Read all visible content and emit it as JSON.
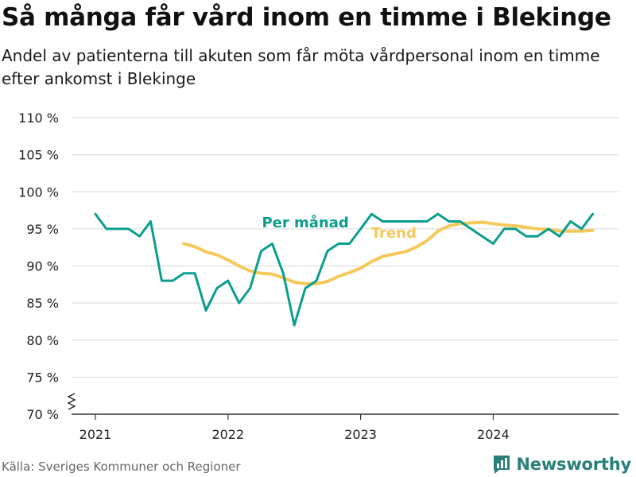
{
  "title": "Så många får vård inom en timme i Blekinge",
  "subtitle": "Andel av patienterna till akuten som får möta vårdpersonal inom en timme efter ankomst i Blekinge",
  "source": "Källa: Sveriges Kommuner och Regioner",
  "brand": "Newsworthy",
  "colors": {
    "per_month": "#0a9e8f",
    "trend": "#f5c85a",
    "grid": "#d9d9d9",
    "axis": "#333333",
    "brand": "#2a7f79"
  },
  "chart_data": {
    "type": "line",
    "y_ticks": [
      70,
      75,
      80,
      85,
      90,
      95,
      100,
      105,
      110
    ],
    "y_tick_labels": [
      "70 %",
      "75 %",
      "80 %",
      "85 %",
      "90 %",
      "95 %",
      "100 %",
      "105 %",
      "110 %"
    ],
    "ylim": [
      70,
      110
    ],
    "y_axis_break": true,
    "x_ticks": [
      "2021-01",
      "2022-01",
      "2023-01",
      "2024-01"
    ],
    "x_tick_labels": [
      "2021",
      "2022",
      "2023",
      "2024"
    ],
    "xlim": [
      "2021-01",
      "2024-12"
    ],
    "grid": true,
    "series": [
      {
        "name": "Per månad",
        "x": [
          "2021-01",
          "2021-02",
          "2021-03",
          "2021-04",
          "2021-05",
          "2021-06",
          "2021-07",
          "2021-08",
          "2021-09",
          "2021-10",
          "2021-11",
          "2021-12",
          "2022-01",
          "2022-02",
          "2022-03",
          "2022-04",
          "2022-05",
          "2022-06",
          "2022-07",
          "2022-08",
          "2022-09",
          "2022-10",
          "2022-11",
          "2022-12",
          "2023-01",
          "2023-02",
          "2023-03",
          "2023-04",
          "2023-05",
          "2023-06",
          "2023-07",
          "2023-08",
          "2023-09",
          "2023-10",
          "2023-11",
          "2023-12",
          "2024-01",
          "2024-02",
          "2024-03",
          "2024-04",
          "2024-05",
          "2024-06",
          "2024-07",
          "2024-08",
          "2024-09",
          "2024-10"
        ],
        "values": [
          97,
          95,
          95,
          95,
          94,
          96,
          88,
          88,
          89,
          89,
          84,
          87,
          88,
          85,
          87,
          92,
          93,
          89,
          82,
          87,
          88,
          92,
          93,
          93,
          95,
          97,
          96,
          96,
          96,
          96,
          96,
          97,
          96,
          96,
          95,
          94,
          93,
          95,
          95,
          94,
          94,
          95,
          94,
          96,
          95,
          97
        ]
      },
      {
        "name": "Trend",
        "x": [
          "2021-09",
          "2021-10",
          "2021-11",
          "2021-12",
          "2022-01",
          "2022-02",
          "2022-03",
          "2022-04",
          "2022-05",
          "2022-06",
          "2022-07",
          "2022-08",
          "2022-09",
          "2022-10",
          "2022-11",
          "2022-12",
          "2023-01",
          "2023-02",
          "2023-03",
          "2023-04",
          "2023-05",
          "2023-06",
          "2023-07",
          "2023-08",
          "2023-09",
          "2023-10",
          "2023-11",
          "2023-12",
          "2024-01",
          "2024-02",
          "2024-03",
          "2024-04",
          "2024-05",
          "2024-06",
          "2024-07",
          "2024-08",
          "2024-09",
          "2024-10"
        ],
        "values": [
          93.0,
          92.6,
          91.9,
          91.5,
          90.8,
          90.0,
          89.3,
          89.0,
          88.9,
          88.4,
          87.8,
          87.6,
          87.6,
          87.9,
          88.6,
          89.1,
          89.7,
          90.6,
          91.3,
          91.6,
          91.9,
          92.5,
          93.4,
          94.7,
          95.4,
          95.7,
          95.8,
          95.9,
          95.7,
          95.5,
          95.4,
          95.2,
          95.0,
          94.9,
          94.7,
          94.7,
          94.7,
          94.8
        ]
      }
    ],
    "annotations": [
      "Per månad",
      "Trend"
    ]
  }
}
